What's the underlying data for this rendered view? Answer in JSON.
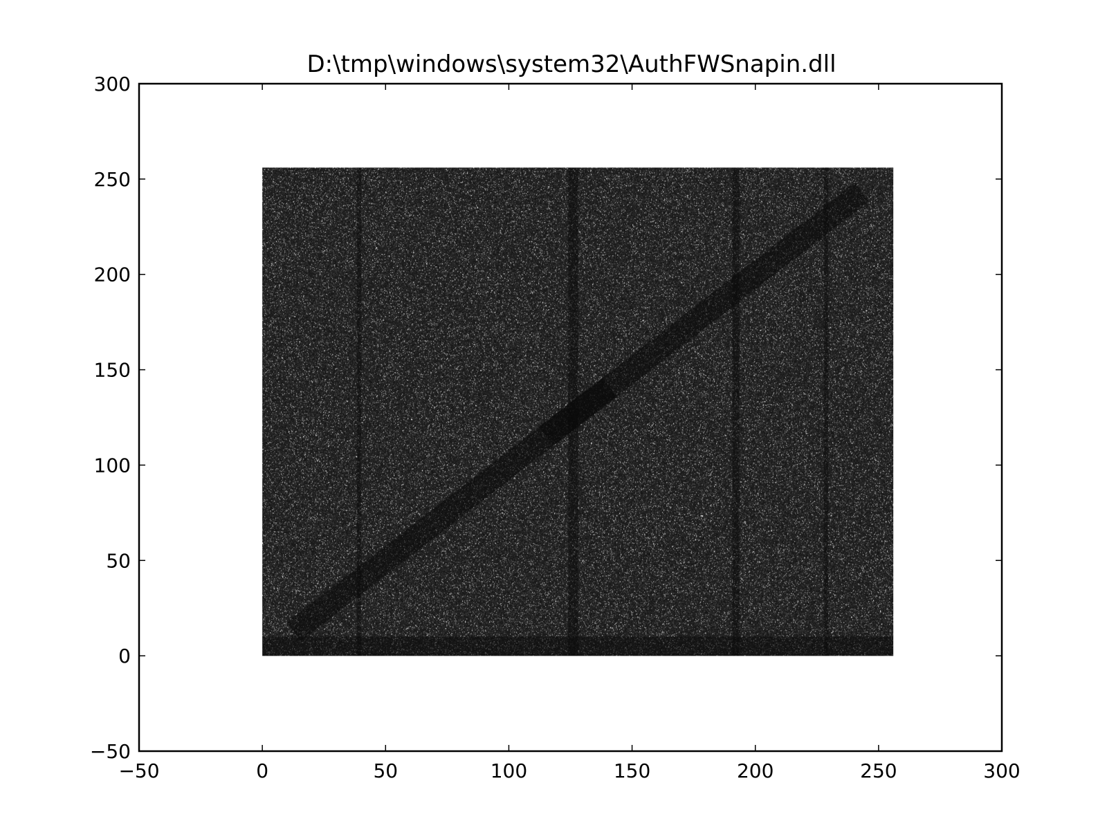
{
  "chart_data": {
    "type": "heatmap",
    "title": "D:\\tmp\\windows\\system32\\AuthFWSnapin.dll",
    "xlabel": "",
    "ylabel": "",
    "xlim": [
      -50,
      300
    ],
    "ylim": [
      -50,
      300
    ],
    "x_ticks": [
      -50,
      0,
      50,
      100,
      150,
      200,
      250,
      300
    ],
    "y_ticks": [
      -50,
      0,
      50,
      100,
      150,
      200,
      250,
      300
    ],
    "x_tick_labels": [
      "−50",
      "0",
      "50",
      "100",
      "150",
      "200",
      "250",
      "300"
    ],
    "y_tick_labels": [
      "−50",
      "0",
      "50",
      "100",
      "150",
      "200",
      "250",
      "300"
    ],
    "grid": false,
    "legend": "none",
    "data_extent": {
      "x": [
        0,
        255
      ],
      "y": [
        0,
        255
      ]
    },
    "marker": "scatter points at every integer (x, y) byte-pair coordinate, coloured by pair frequency",
    "colors": {
      "background_points": "#1c1c1c",
      "bright_points": "#e8e8e8",
      "frame": "#000000"
    }
  }
}
